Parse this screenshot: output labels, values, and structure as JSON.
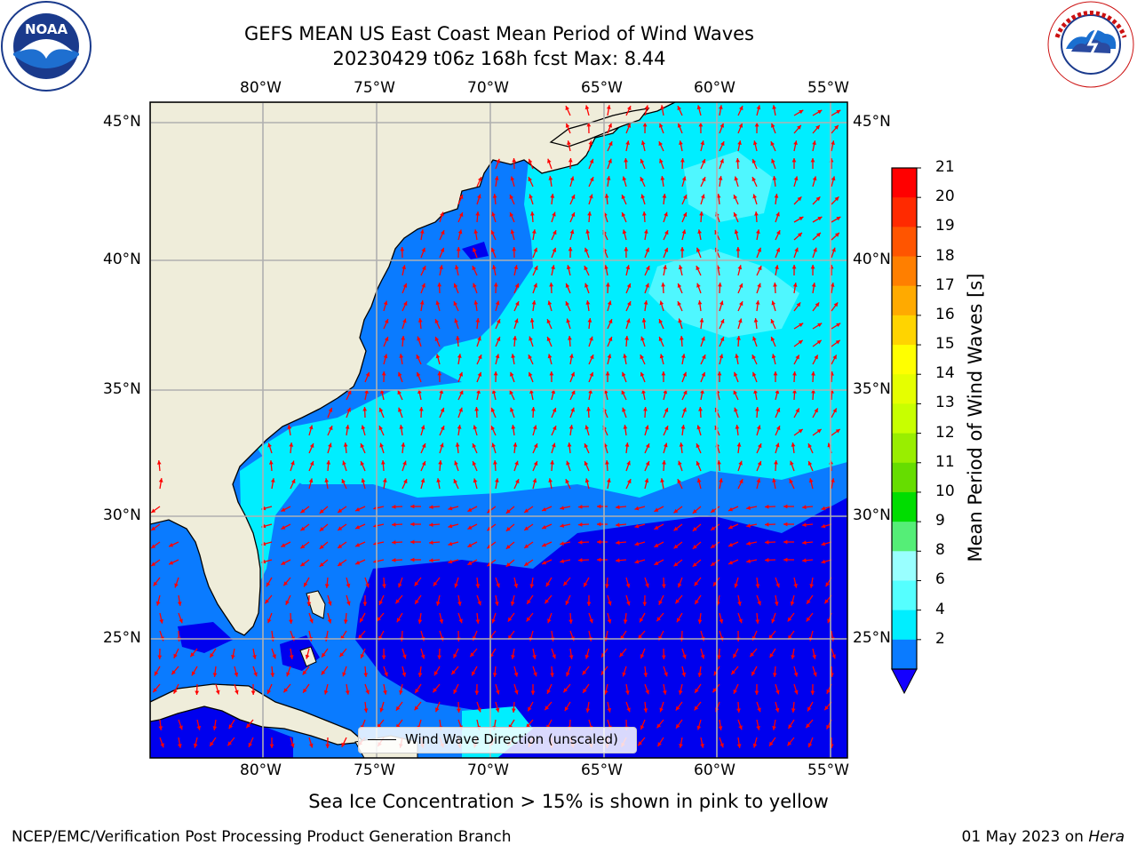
{
  "header": {
    "title_line1": "GEFS MEAN US East Coast Mean Period of Wind Waves",
    "title_line2": "20230429 t06z 168h fcst   Max: 8.44"
  },
  "logos": {
    "noaa": {
      "text": "NOAA",
      "ring_text": "NATIONAL OCEANIC AND ATMOSPHERIC ADMINISTRATION · U.S. DEPARTMENT OF COMMERCE"
    },
    "nws": {
      "ring_text": "NATIONAL WEATHER SERVICE"
    }
  },
  "map": {
    "longitude_labels": [
      "80°W",
      "75°W",
      "70°W",
      "65°W",
      "60°W",
      "55°W"
    ],
    "latitude_labels": [
      "45°N",
      "40°N",
      "35°N",
      "30°N",
      "25°N"
    ],
    "gridlines": true,
    "colors": {
      "land": "#efedda",
      "ocean_2_4": "#0a7bff",
      "ocean_4_6": "#00eeff",
      "ocean_6_8": "#4ff7ff",
      "ocean_lt2": "#0000ee",
      "arrow": "#ff0000"
    }
  },
  "colorbar": {
    "title": "Mean Period of Wind Waves [s]",
    "tick_labels": [
      "21",
      "20",
      "19",
      "18",
      "17",
      "16",
      "15",
      "14",
      "13",
      "12",
      "11",
      "10",
      "9",
      "8",
      "6",
      "4",
      "2"
    ],
    "colors": [
      "#ff0000",
      "#ff2a00",
      "#ff5500",
      "#ff7f00",
      "#ffaa00",
      "#ffd400",
      "#ffff00",
      "#e5ff00",
      "#c8ff00",
      "#99ee00",
      "#66dd00",
      "#00dd00",
      "#55ee77",
      "#99ffff",
      "#55ffff",
      "#00eeff",
      "#0a7bff"
    ],
    "extend_color": "#1400ff"
  },
  "legend": {
    "label": "Wind Wave Direction (unscaled)"
  },
  "caption": "Sea Ice Concentration > 15% is shown in pink to yellow",
  "footer": {
    "left": "NCEP/EMC/Verification Post Processing Product Generation Branch",
    "right_date": "01 May 2023 on ",
    "right_host": "Hera"
  }
}
